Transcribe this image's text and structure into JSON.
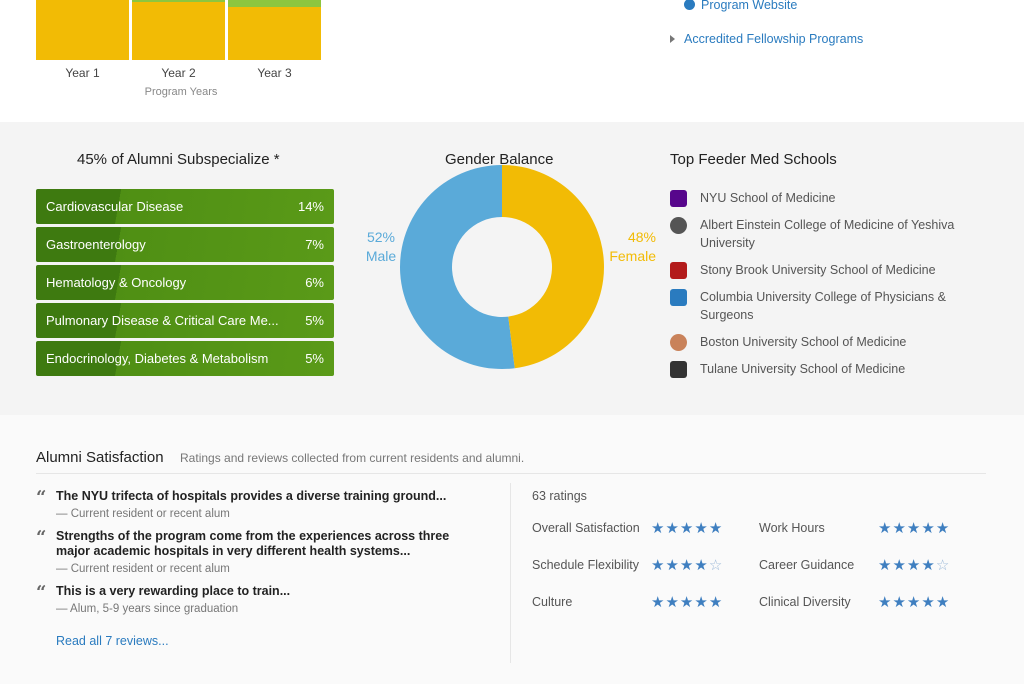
{
  "program_years_chart": {
    "bars": [
      {
        "label": "Year 1",
        "green_fraction": 0.0
      },
      {
        "label": "Year 2",
        "green_fraction": 0.03
      },
      {
        "label": "Year 3",
        "green_fraction": 0.12
      }
    ],
    "xlabel": "Program Years",
    "colors": {
      "primary": "#f2bb05",
      "secondary": "#8cc63f"
    }
  },
  "links": {
    "program_website": "Program Website",
    "accredited_fellowship": "Accredited Fellowship Programs"
  },
  "subspecialize": {
    "title": "45% of Alumni Subspecialize *",
    "items": [
      {
        "label": "Cardiovascular Disease",
        "pct": "14%"
      },
      {
        "label": "Gastroenterology",
        "pct": "7%"
      },
      {
        "label": "Hematology & Oncology",
        "pct": "6%"
      },
      {
        "label": "Pulmonary Disease & Critical Care Me...",
        "pct": "5%"
      },
      {
        "label": "Endocrinology, Diabetes & Metabolism",
        "pct": "5%"
      }
    ]
  },
  "gender": {
    "title": "Gender Balance",
    "male_pct": "52%",
    "male_label": "Male",
    "female_pct": "48%",
    "female_label": "Female",
    "male_value": 52,
    "female_value": 48,
    "male_color": "#5aaad9",
    "female_color": "#f2bb05"
  },
  "feeder": {
    "title": "Top Feeder Med Schools",
    "schools": [
      {
        "name": "NYU School of Medicine",
        "logo_color": "#57068c",
        "icon": "nyu-torch-icon"
      },
      {
        "name": "Albert Einstein College of Medicine of Yeshiva University",
        "logo_color": "#555555",
        "icon": "einstein-seal-icon"
      },
      {
        "name": "Stony Brook University School of Medicine",
        "logo_color": "#b31b1b",
        "icon": "stony-brook-icon"
      },
      {
        "name": "Columbia University College of Physicians & Surgeons",
        "logo_color": "#2a7bbf",
        "icon": "columbia-crown-icon"
      },
      {
        "name": "Boston University School of Medicine",
        "logo_color": "#c9825a",
        "icon": "bu-seal-icon"
      },
      {
        "name": "Tulane University School of Medicine",
        "logo_color": "#333333",
        "icon": "tulane-shield-icon"
      }
    ]
  },
  "satisfaction": {
    "title": "Alumni Satisfaction",
    "subtitle": "Ratings and reviews collected from current residents and alumni.",
    "reviews": [
      {
        "quote": "The NYU trifecta of hospitals provides a diverse training ground...",
        "by": "— Current resident or recent alum"
      },
      {
        "quote": "Strengths of the program come from the experiences across three major academic hospitals in very different health systems...",
        "by": "— Current resident or recent alum"
      },
      {
        "quote": "This is a very rewarding place to train...",
        "by": "— Alum, 5-9 years since graduation"
      }
    ],
    "read_all": "Read all 7 reviews...",
    "ratings_count": "63 ratings",
    "ratings": [
      {
        "label": "Overall Satisfaction",
        "stars": 5
      },
      {
        "label": "Work Hours",
        "stars": 5
      },
      {
        "label": "Schedule Flexibility",
        "stars": 4
      },
      {
        "label": "Career Guidance",
        "stars": 4
      },
      {
        "label": "Culture",
        "stars": 5
      },
      {
        "label": "Clinical Diversity",
        "stars": 5
      }
    ]
  }
}
